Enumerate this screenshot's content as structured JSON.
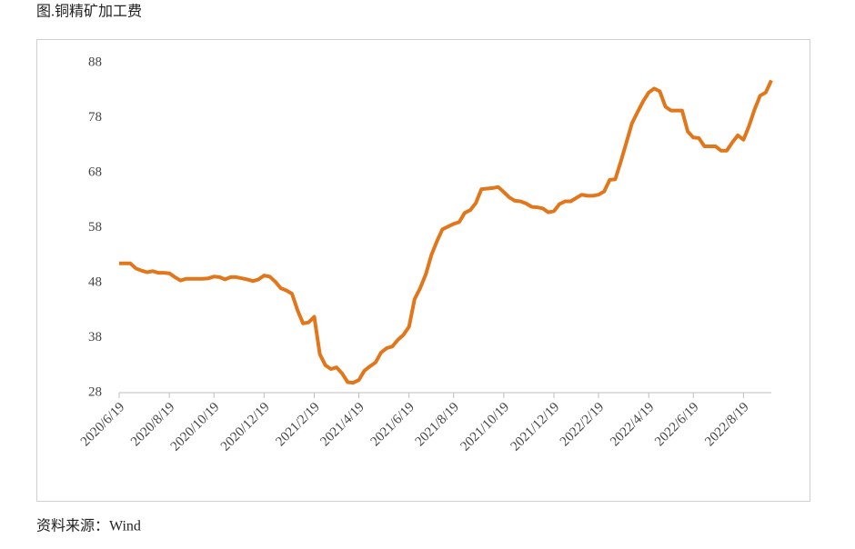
{
  "title": "图.铜精矿加工费",
  "source": "资料来源：Wind",
  "chart_data": {
    "type": "line",
    "categories": [
      "2020/6/19",
      null,
      null,
      null,
      null,
      null,
      null,
      null,
      null,
      "2020/8/19",
      null,
      null,
      null,
      null,
      null,
      null,
      null,
      "2020/10/19",
      null,
      null,
      null,
      null,
      null,
      null,
      null,
      null,
      "2020/12/19",
      null,
      null,
      null,
      null,
      null,
      null,
      null,
      null,
      "2021/2/19",
      null,
      null,
      null,
      null,
      null,
      null,
      null,
      "2021/4/19",
      null,
      null,
      null,
      null,
      null,
      null,
      null,
      null,
      "2021/6/19",
      null,
      null,
      null,
      null,
      null,
      null,
      null,
      "2021/8/19",
      null,
      null,
      null,
      null,
      null,
      null,
      null,
      null,
      "2021/10/19",
      null,
      null,
      null,
      null,
      null,
      null,
      null,
      null,
      "2021/12/19",
      null,
      null,
      null,
      null,
      null,
      null,
      null,
      "2022/2/19",
      null,
      null,
      null,
      null,
      null,
      null,
      null,
      null,
      "2022/4/19",
      null,
      null,
      null,
      null,
      null,
      null,
      null,
      "2022/6/19",
      null,
      null,
      null,
      null,
      null,
      null,
      null,
      null,
      "2022/8/19",
      null,
      null,
      null,
      null,
      null
    ],
    "series": [
      {
        "name": "铜精矿加工费",
        "color": "#e2761b",
        "values": [
          51.5,
          51.5,
          51.5,
          50.6,
          50.2,
          49.9,
          50.1,
          49.8,
          49.8,
          49.7,
          49,
          48.4,
          48.7,
          48.7,
          48.7,
          48.7,
          48.8,
          49.1,
          49,
          48.6,
          49,
          49,
          48.8,
          48.6,
          48.3,
          48.6,
          49.3,
          49.1,
          48.2,
          47,
          46.6,
          46,
          43,
          40.6,
          40.8,
          41.8,
          35,
          33,
          32.3,
          32.6,
          31.5,
          29.9,
          29.8,
          30.3,
          32,
          32.8,
          33.5,
          35.3,
          36.1,
          36.4,
          37.6,
          38.5,
          40,
          45,
          47,
          49.5,
          53,
          55.5,
          57.7,
          58.2,
          58.7,
          59,
          60.7,
          61.2,
          62.5,
          65,
          65.1,
          65.2,
          65.4,
          64.5,
          63.5,
          62.9,
          62.8,
          62.4,
          61.8,
          61.7,
          61.5,
          60.8,
          61,
          62.3,
          62.8,
          62.8,
          63.4,
          64,
          63.8,
          63.8,
          64,
          64.6,
          66.7,
          66.8,
          70,
          73.5,
          77,
          79,
          81,
          82.6,
          83.3,
          82.8,
          80,
          79.3,
          79.3,
          79.3,
          75.5,
          74.4,
          74.3,
          72.8,
          72.8,
          72.8,
          72,
          72,
          73.5,
          74.8,
          74,
          76.5,
          79.5,
          82,
          82.6,
          84.8
        ]
      }
    ],
    "ylim": [
      28,
      88
    ],
    "yticks": [
      28,
      38,
      48,
      58,
      68,
      78,
      88
    ],
    "grid": false
  }
}
